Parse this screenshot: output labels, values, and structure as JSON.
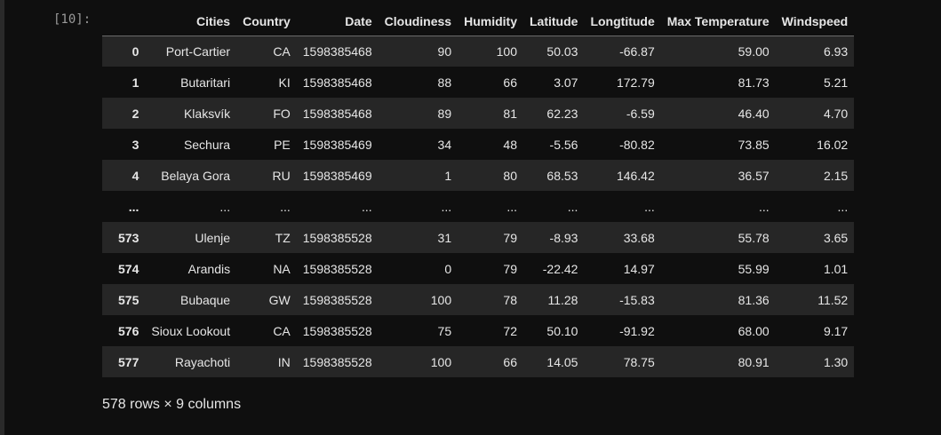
{
  "cell": {
    "prompt": "[10]:"
  },
  "dataframe": {
    "columns": [
      "",
      "Cities",
      "Country",
      "Date",
      "Cloudiness",
      "Humidity",
      "Latitude",
      "Longtitude",
      "Max Temperature",
      "Windspeed"
    ],
    "rows": [
      [
        "0",
        "Port-Cartier",
        "CA",
        "1598385468",
        "90",
        "100",
        "50.03",
        "-66.87",
        "59.00",
        "6.93"
      ],
      [
        "1",
        "Butaritari",
        "KI",
        "1598385468",
        "88",
        "66",
        "3.07",
        "172.79",
        "81.73",
        "5.21"
      ],
      [
        "2",
        "Klaksvík",
        "FO",
        "1598385468",
        "89",
        "81",
        "62.23",
        "-6.59",
        "46.40",
        "4.70"
      ],
      [
        "3",
        "Sechura",
        "PE",
        "1598385469",
        "34",
        "48",
        "-5.56",
        "-80.82",
        "73.85",
        "16.02"
      ],
      [
        "4",
        "Belaya Gora",
        "RU",
        "1598385469",
        "1",
        "80",
        "68.53",
        "146.42",
        "36.57",
        "2.15"
      ],
      [
        "...",
        "...",
        "...",
        "...",
        "...",
        "...",
        "...",
        "...",
        "...",
        "..."
      ],
      [
        "573",
        "Ulenje",
        "TZ",
        "1598385528",
        "31",
        "79",
        "-8.93",
        "33.68",
        "55.78",
        "3.65"
      ],
      [
        "574",
        "Arandis",
        "NA",
        "1598385528",
        "0",
        "79",
        "-22.42",
        "14.97",
        "55.99",
        "1.01"
      ],
      [
        "575",
        "Bubaque",
        "GW",
        "1598385528",
        "100",
        "78",
        "11.28",
        "-15.83",
        "81.36",
        "11.52"
      ],
      [
        "576",
        "Sioux Lookout",
        "CA",
        "1598385528",
        "75",
        "72",
        "50.10",
        "-91.92",
        "68.00",
        "9.17"
      ],
      [
        "577",
        "Rayachoti",
        "IN",
        "1598385528",
        "100",
        "66",
        "14.05",
        "78.75",
        "80.91",
        "1.30"
      ]
    ],
    "summary": "578 rows × 9 columns"
  }
}
